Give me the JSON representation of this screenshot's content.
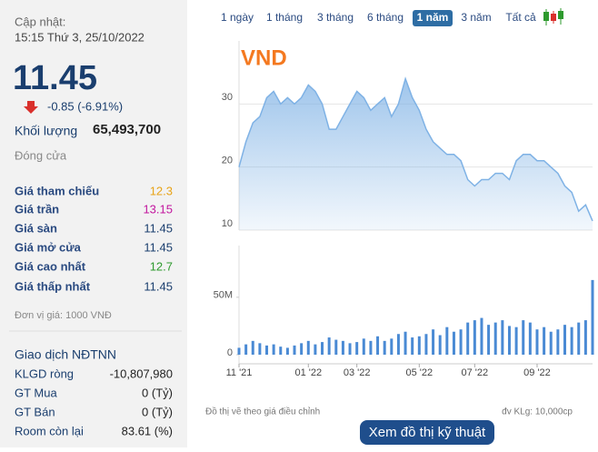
{
  "panel": {
    "updated_label": "Cập nhật:",
    "updated_time": "15:15 Thứ 3, 25/10/2022",
    "price": "11.45",
    "change": "-0.85 (-6.91%)",
    "volume_label": "Khối lượng",
    "volume": "65,493,700",
    "status": "Đóng cửa",
    "prices": [
      {
        "label": "Giá tham chiếu",
        "value": "12.3",
        "color": "#e8a317"
      },
      {
        "label": "Giá trần",
        "value": "13.15",
        "color": "#c2169e"
      },
      {
        "label": "Giá sàn",
        "value": "11.45",
        "color": "#1a3e6e"
      },
      {
        "label": "Giá mở cửa",
        "value": "11.45",
        "color": "#1a3e6e"
      },
      {
        "label": "Giá cao nhất",
        "value": "12.7",
        "color": "#2e9a2e"
      },
      {
        "label": "Giá thấp nhất",
        "value": "11.45",
        "color": "#1a3e6e"
      }
    ],
    "unit_note": "Đơn vị giá: 1000 VNĐ",
    "foreign_title": "Giao dịch NĐTNN",
    "foreign": [
      {
        "label": "KLGD ròng",
        "value": "-10,807,980"
      },
      {
        "label": "GT Mua",
        "value": "0 (Tỷ)"
      },
      {
        "label": "GT Bán",
        "value": "0 (Tỷ)"
      },
      {
        "label": "Room còn lại",
        "value": "83.61 (%)"
      }
    ]
  },
  "ranges": [
    "1 ngày",
    "1 tháng",
    "3 tháng",
    "6 tháng",
    "1 năm",
    "3 năm",
    "Tất cả"
  ],
  "active_range": 4,
  "chart_data": [
    {
      "type": "area",
      "title": "VND",
      "color": "#7fb2e5",
      "values": [
        20,
        24,
        27,
        28,
        31,
        32,
        30,
        31,
        30,
        31,
        33,
        32,
        30,
        26,
        26,
        28,
        30,
        32,
        31,
        29,
        30,
        31,
        28,
        30,
        34,
        31,
        29,
        26,
        24,
        23,
        22,
        22,
        21,
        18,
        17,
        18,
        18,
        19,
        19,
        18,
        21,
        22,
        22,
        21,
        21,
        20,
        19,
        17,
        16,
        13,
        14,
        11.45
      ],
      "ylim": [
        10,
        40
      ],
      "yticks": [
        10,
        20,
        30
      ],
      "grid": true
    },
    {
      "type": "bar",
      "color": "#4a8ad4",
      "categories": [
        "11 '21",
        null,
        null,
        null,
        null,
        null,
        null,
        null,
        null,
        null,
        "01 '22",
        null,
        null,
        null,
        null,
        null,
        null,
        "03 '22",
        null,
        null,
        null,
        null,
        null,
        null,
        null,
        null,
        "05 '22",
        null,
        null,
        null,
        null,
        null,
        null,
        null,
        "07 '22",
        null,
        null,
        null,
        null,
        null,
        null,
        null,
        null,
        "09 '22",
        null,
        null,
        null,
        null,
        null,
        null,
        null,
        null
      ],
      "values": [
        6000000,
        9000000,
        12000000,
        10000000,
        8000000,
        9000000,
        7000000,
        6000000,
        8000000,
        10000000,
        12000000,
        9000000,
        11000000,
        15000000,
        13000000,
        12000000,
        10000000,
        11000000,
        14000000,
        12000000,
        16000000,
        12000000,
        14000000,
        18000000,
        20000000,
        15000000,
        16000000,
        18000000,
        22000000,
        17000000,
        24000000,
        20000000,
        22000000,
        28000000,
        30000000,
        32000000,
        26000000,
        28000000,
        30000000,
        25000000,
        24000000,
        30000000,
        28000000,
        22000000,
        24000000,
        20000000,
        22000000,
        26000000,
        24000000,
        28000000,
        30000000,
        65000000
      ],
      "ylim": [
        0,
        95000000
      ],
      "yticks": [
        0,
        {
          "value": 50000000,
          "label": "50M"
        }
      ]
    }
  ],
  "notes": {
    "adjusted": "Đồ thị vẽ theo giá điều chỉnh",
    "volume_unit": "đv KLg: 10,000cp"
  },
  "button": "Xem đồ thị kỹ thuật"
}
